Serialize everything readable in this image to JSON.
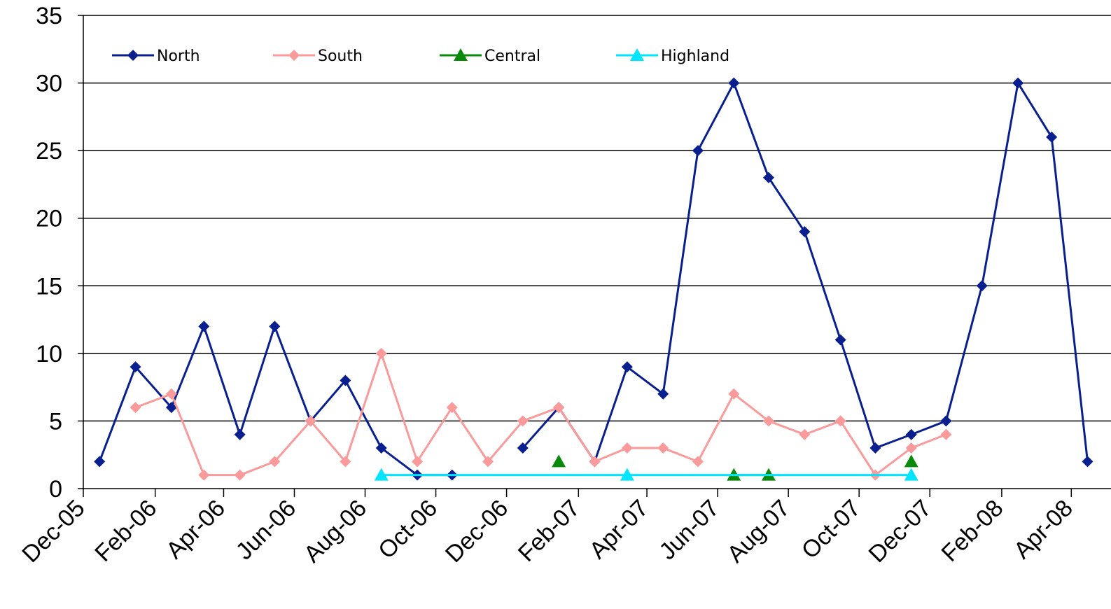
{
  "chart_data": {
    "type": "line",
    "y_ticks": [
      "0",
      "5",
      "10",
      "15",
      "20",
      "25",
      "30",
      "35"
    ],
    "ylim": [
      0,
      35
    ],
    "x_tick_labels": [
      "Dec-05",
      "Feb-06",
      "Apr-06",
      "Jun-06",
      "Aug-06",
      "Oct-06",
      "Dec-06",
      "Feb-07",
      "Apr-07",
      "Jun-07",
      "Aug-07",
      "Oct-07",
      "Dec-07",
      "Feb-08",
      "Apr-08"
    ],
    "x_range": [
      "2005-12-01",
      "2008-05-01"
    ],
    "grid": "horizontal",
    "legend_position": "top",
    "series": [
      {
        "name": "North",
        "color": "#0A1F8F",
        "marker": "diamond",
        "points": [
          {
            "x": "2005-12-15",
            "y": 2
          },
          {
            "x": "2006-01-15",
            "y": 9
          },
          {
            "x": "2006-02-15",
            "y": 6
          },
          {
            "x": "2006-03-15",
            "y": 12
          },
          {
            "x": "2006-04-15",
            "y": 4
          },
          {
            "x": "2006-05-15",
            "y": 12
          },
          {
            "x": "2006-06-15",
            "y": 5
          },
          {
            "x": "2006-07-15",
            "y": 8
          },
          {
            "x": "2006-08-15",
            "y": 3
          },
          {
            "x": "2006-09-15",
            "y": 1
          },
          {
            "x": "2006-10-15",
            "y": 1
          },
          {
            "x": "2006-11-15",
            "y": null
          },
          {
            "x": "2006-12-15",
            "y": 3
          },
          {
            "x": "2007-01-15",
            "y": 6
          },
          {
            "x": "2007-02-15",
            "y": 2
          },
          {
            "x": "2007-03-15",
            "y": 9
          },
          {
            "x": "2007-04-15",
            "y": 7
          },
          {
            "x": "2007-05-15",
            "y": 25
          },
          {
            "x": "2007-06-15",
            "y": 30
          },
          {
            "x": "2007-07-15",
            "y": 23
          },
          {
            "x": "2007-08-15",
            "y": 19
          },
          {
            "x": "2007-09-15",
            "y": 11
          },
          {
            "x": "2007-10-15",
            "y": 3
          },
          {
            "x": "2007-11-15",
            "y": 4
          },
          {
            "x": "2007-12-15",
            "y": 5
          },
          {
            "x": "2008-01-15",
            "y": 15
          },
          {
            "x": "2008-02-15",
            "y": 30
          },
          {
            "x": "2008-03-15",
            "y": 26
          },
          {
            "x": "2008-04-15",
            "y": 2
          }
        ]
      },
      {
        "name": "South",
        "color": "#FA9A9A",
        "marker": "diamond",
        "points": [
          {
            "x": "2006-01-15",
            "y": 6
          },
          {
            "x": "2006-02-15",
            "y": 7
          },
          {
            "x": "2006-03-15",
            "y": 1
          },
          {
            "x": "2006-04-15",
            "y": 1
          },
          {
            "x": "2006-05-15",
            "y": 2
          },
          {
            "x": "2006-06-15",
            "y": 5
          },
          {
            "x": "2006-07-15",
            "y": 2
          },
          {
            "x": "2006-08-15",
            "y": 10
          },
          {
            "x": "2006-09-15",
            "y": 2
          },
          {
            "x": "2006-10-15",
            "y": 6
          },
          {
            "x": "2006-11-15",
            "y": 2
          },
          {
            "x": "2006-12-15",
            "y": 5
          },
          {
            "x": "2007-01-15",
            "y": 6
          },
          {
            "x": "2007-02-15",
            "y": 2
          },
          {
            "x": "2007-03-15",
            "y": 3
          },
          {
            "x": "2007-04-15",
            "y": 3
          },
          {
            "x": "2007-05-15",
            "y": 2
          },
          {
            "x": "2007-06-15",
            "y": 7
          },
          {
            "x": "2007-07-15",
            "y": 5
          },
          {
            "x": "2007-08-15",
            "y": 4
          },
          {
            "x": "2007-09-15",
            "y": 5
          },
          {
            "x": "2007-10-15",
            "y": 1
          },
          {
            "x": "2007-11-15",
            "y": 3
          },
          {
            "x": "2007-12-15",
            "y": 4
          }
        ]
      },
      {
        "name": "Central",
        "color": "#0A8A0A",
        "marker": "triangle",
        "points": [
          {
            "x": "2007-01-15",
            "y": 2
          },
          {
            "x": "2007-02-15",
            "y": null
          },
          {
            "x": "2007-03-15",
            "y": null
          },
          {
            "x": "2007-04-15",
            "y": null
          },
          {
            "x": "2007-05-15",
            "y": null
          },
          {
            "x": "2007-06-15",
            "y": 1
          },
          {
            "x": "2007-07-15",
            "y": 1
          },
          {
            "x": "2007-08-15",
            "y": null
          },
          {
            "x": "2007-09-15",
            "y": null
          },
          {
            "x": "2007-10-15",
            "y": null
          },
          {
            "x": "2007-11-15",
            "y": 2
          }
        ]
      },
      {
        "name": "Highland",
        "color": "#00E5FF",
        "marker": "triangle",
        "points": [
          {
            "x": "2006-08-15",
            "y": 1
          },
          {
            "x": "2007-03-15",
            "y": 1
          },
          {
            "x": "2007-11-15",
            "y": 1
          }
        ]
      }
    ]
  }
}
